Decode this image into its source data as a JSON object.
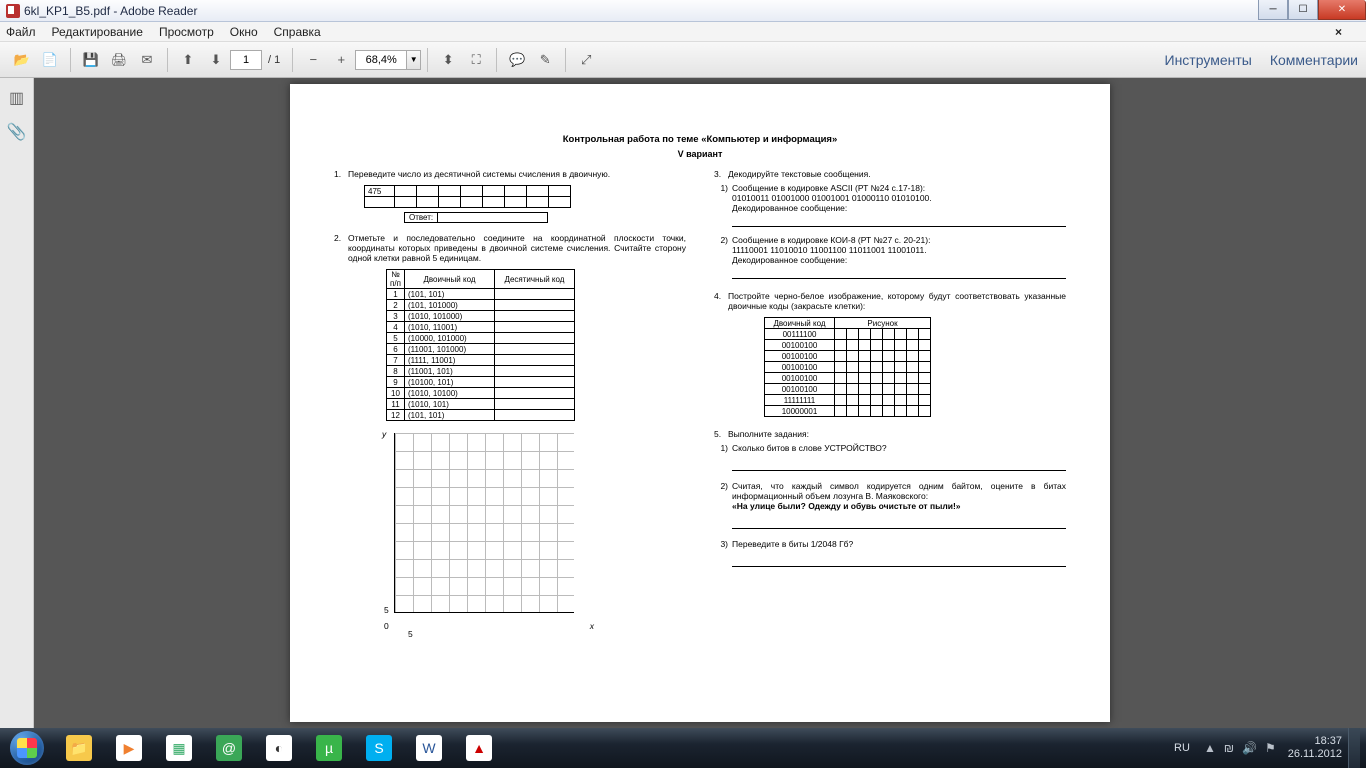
{
  "window": {
    "title": "6kl_KP1_B5.pdf - Adobe Reader"
  },
  "menu": {
    "items": [
      "Файл",
      "Редактирование",
      "Просмотр",
      "Окно",
      "Справка"
    ]
  },
  "toolbar": {
    "page_current": "1",
    "page_total": "/ 1",
    "zoom": "68,4%",
    "right_tools": "Инструменты",
    "right_comments": "Комментарии"
  },
  "doc": {
    "title": "Контрольная работа по теме «Компьютер и информация»",
    "variant": "V вариант",
    "q1": "Переведите число из десятичной системы счисления в двоичную.",
    "q1_num": "475",
    "q1_answer_label": "Ответ:",
    "q2": "Отметьте и последовательно соедините на координатной плоскости точки, координаты которых приведены в двоичной системе счисления. Считайте сторону одной клетки равной 5 единицам.",
    "q2_headers": [
      "№ п/п",
      "Двоичный код",
      "Десятичный код"
    ],
    "q2_rows": [
      [
        "1",
        "(101, 101)"
      ],
      [
        "2",
        "(101, 101000)"
      ],
      [
        "3",
        "(1010, 101000)"
      ],
      [
        "4",
        "(1010, 11001)"
      ],
      [
        "5",
        "(10000, 101000)"
      ],
      [
        "6",
        "(11001, 101000)"
      ],
      [
        "7",
        "(1111, 11001)"
      ],
      [
        "8",
        "(11001, 101)"
      ],
      [
        "9",
        "(10100, 101)"
      ],
      [
        "10",
        "(1010, 10100)"
      ],
      [
        "11",
        "(1010, 101)"
      ],
      [
        "12",
        "(101, 101)"
      ]
    ],
    "grid_y": "y",
    "grid_x": "x",
    "grid_origin": "0",
    "grid_five": "5",
    "q3": "Декодируйте текстовые сообщения.",
    "q3_1a": "Сообщение в кодировке ASCII (РТ №24 с.17-18):",
    "q3_1b": "01010011 01001000 01001001 01000110 01010100.",
    "q3_1c": "Декодированное сообщение:",
    "q3_2a": "Сообщение в кодировке КОИ-8 (РТ №27 с. 20-21):",
    "q3_2b": "11110001 11010010 11001100 11011001 11001011.",
    "q3_2c": "Декодированное сообщение:",
    "q4": "Постройте черно-белое изображение, которому будут соответствовать указанные двоичные коды (закрасьте клетки):",
    "q4_h1": "Двоичный код",
    "q4_h2": "Рисунок",
    "q4_rows": [
      "00111100",
      "00100100",
      "00100100",
      "00100100",
      "00100100",
      "00100100",
      "11111111",
      "10000001"
    ],
    "q5": "Выполните задания:",
    "q5_1": "Сколько битов в слове УСТРОЙСТВО?",
    "q5_2a": "Считая, что каждый символ кодируется одним байтом, оцените в битах информационный объем лозунга В. Маяковского:",
    "q5_2b": "«На улице были? Одежду и обувь очистьте от пыли!»",
    "q5_3": "Переведите в биты 1/2048 Гб?"
  },
  "tray": {
    "lang": "RU",
    "time": "18:37",
    "date": "26.11.2012"
  },
  "taskbar_icons": [
    {
      "bg": "#f7c94b",
      "fg": "#8a5a10",
      "glyph": "📁"
    },
    {
      "bg": "#ffffff",
      "fg": "#f08030",
      "glyph": "▶"
    },
    {
      "bg": "#ffffff",
      "fg": "#3a6",
      "glyph": "▦"
    },
    {
      "bg": "#3aa757",
      "fg": "#fff",
      "glyph": "@"
    },
    {
      "bg": "#ffffff",
      "fg": "#333",
      "glyph": "◐"
    },
    {
      "bg": "#39b54a",
      "fg": "#fff",
      "glyph": "µ"
    },
    {
      "bg": "#00aff0",
      "fg": "#fff",
      "glyph": "S"
    },
    {
      "bg": "#ffffff",
      "fg": "#2b579a",
      "glyph": "W"
    },
    {
      "bg": "#ffffff",
      "fg": "#c00",
      "glyph": "▲"
    }
  ],
  "colors": {
    "viewport_bg": "#565656"
  }
}
